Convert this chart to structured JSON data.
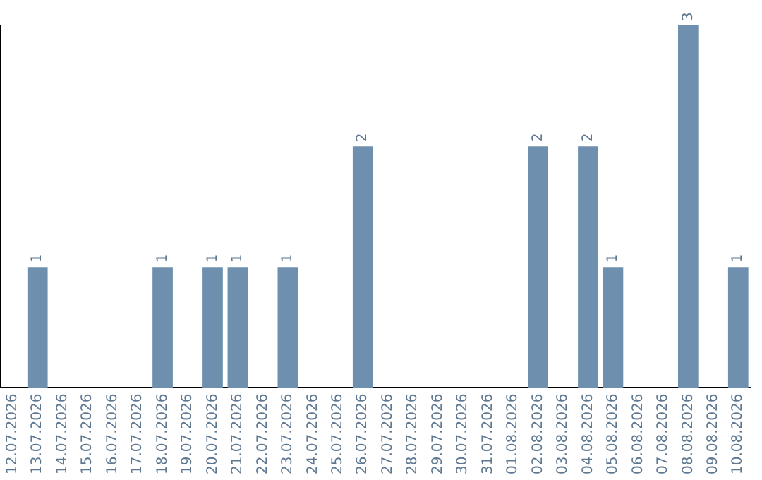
{
  "chart_data": {
    "type": "bar",
    "categories": [
      "12.07.2026",
      "13.07.2026",
      "14.07.2026",
      "15.07.2026",
      "16.07.2026",
      "17.07.2026",
      "18.07.2026",
      "19.07.2026",
      "20.07.2026",
      "21.07.2026",
      "22.07.2026",
      "23.07.2026",
      "24.07.2026",
      "25.07.2026",
      "26.07.2026",
      "27.07.2026",
      "28.07.2026",
      "29.07.2026",
      "30.07.2026",
      "31.07.2026",
      "01.08.2026",
      "02.08.2026",
      "03.08.2026",
      "04.08.2026",
      "05.08.2026",
      "06.08.2026",
      "07.08.2026",
      "08.08.2026",
      "09.08.2026",
      "10.08.2026"
    ],
    "values": [
      0,
      1,
      0,
      0,
      0,
      0,
      1,
      0,
      1,
      1,
      0,
      1,
      0,
      0,
      2,
      0,
      0,
      0,
      0,
      0,
      0,
      2,
      0,
      2,
      1,
      0,
      0,
      3,
      0,
      1
    ],
    "value_labels": [
      null,
      "1",
      null,
      null,
      null,
      null,
      "1",
      null,
      "1",
      "1",
      null,
      "1",
      null,
      null,
      "2",
      null,
      null,
      null,
      null,
      null,
      null,
      "2",
      null,
      "2",
      "1",
      null,
      null,
      "3",
      null,
      "1"
    ],
    "color": "#6e8fad",
    "tick_labels": "x",
    "grid": false,
    "legend": false
  }
}
